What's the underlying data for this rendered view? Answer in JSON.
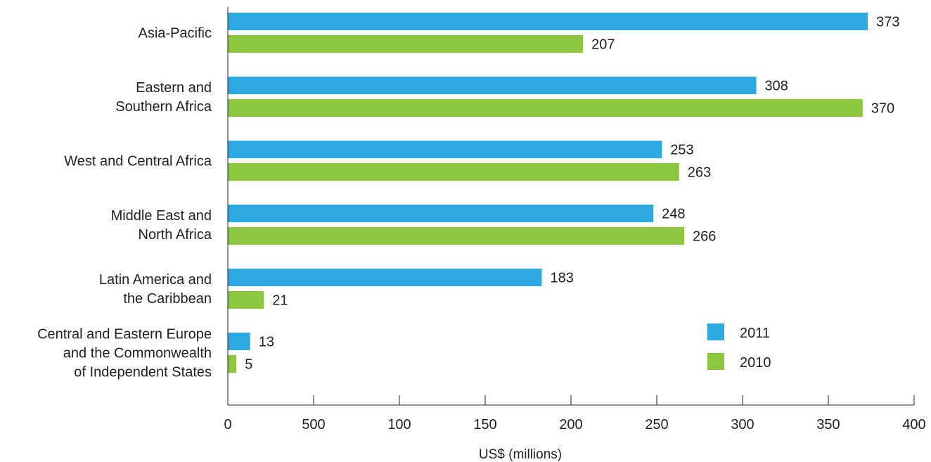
{
  "chart_data": {
    "type": "bar",
    "orientation": "horizontal",
    "categories": [
      [
        "Asia-Pacific"
      ],
      [
        "Eastern and",
        "Southern Africa"
      ],
      [
        "West and Central Africa"
      ],
      [
        "Middle East and",
        "North Africa"
      ],
      [
        "Latin America and",
        "the Caribbean"
      ],
      [
        "Central and Eastern Europe",
        "and the Commonwealth",
        "of Independent States"
      ]
    ],
    "series": [
      {
        "name": "2011",
        "color": "#2ea8e0",
        "values": [
          373,
          308,
          253,
          248,
          183,
          13
        ]
      },
      {
        "name": "2010",
        "color": "#8dc63f",
        "values": [
          207,
          370,
          263,
          266,
          21,
          5
        ]
      }
    ],
    "xlabel": "US$ (millions)",
    "xticks": [
      "0",
      "500",
      "100",
      "150",
      "200",
      "250",
      "300",
      "350",
      "400"
    ],
    "xlim": [
      0,
      400
    ],
    "grid": false,
    "legend": "bottom-right"
  }
}
